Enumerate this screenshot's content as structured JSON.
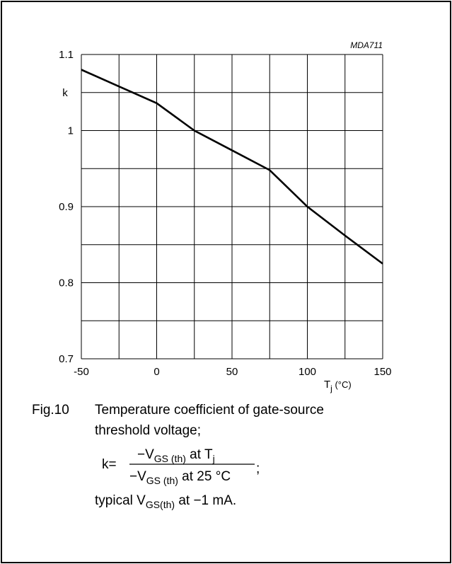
{
  "chart_data": {
    "type": "line",
    "annotation": "MDA711",
    "ylabel": "k",
    "xlabel": {
      "main": "T",
      "sub": "j",
      "unit": " (°C)"
    },
    "x": [
      -50,
      -25,
      0,
      25,
      50,
      75,
      100,
      125,
      150
    ],
    "series": [
      {
        "color": "#000000",
        "values": [
          1.08,
          1.058,
          1.036,
          1.0,
          0.974,
          0.948,
          0.9,
          0.862,
          0.825
        ]
      }
    ],
    "xlim": [
      -50,
      150
    ],
    "xticks": [
      -50,
      0,
      50,
      100,
      150
    ],
    "x_minor_ticks": [
      -25,
      25,
      75,
      125
    ],
    "ylim": [
      0.7,
      1.1
    ],
    "yticks": [
      0.7,
      0.8,
      0.9,
      1,
      1.1
    ],
    "y_minor_ticks": [
      0.75,
      0.85,
      0.95,
      1.05
    ],
    "grid": true
  },
  "caption": {
    "label": "Fig.10",
    "line1": "Temperature coefficient of gate-source",
    "line2": "threshold voltage;",
    "formula": {
      "lhs": "k=",
      "num": [
        "−V",
        "GS (th)",
        " at T",
        "j"
      ],
      "den": [
        "−V",
        "GS (th)",
        " at 25 °C"
      ],
      "end": ";"
    },
    "note": [
      "typical V",
      "GS(th)",
      " at −1 mA."
    ]
  }
}
